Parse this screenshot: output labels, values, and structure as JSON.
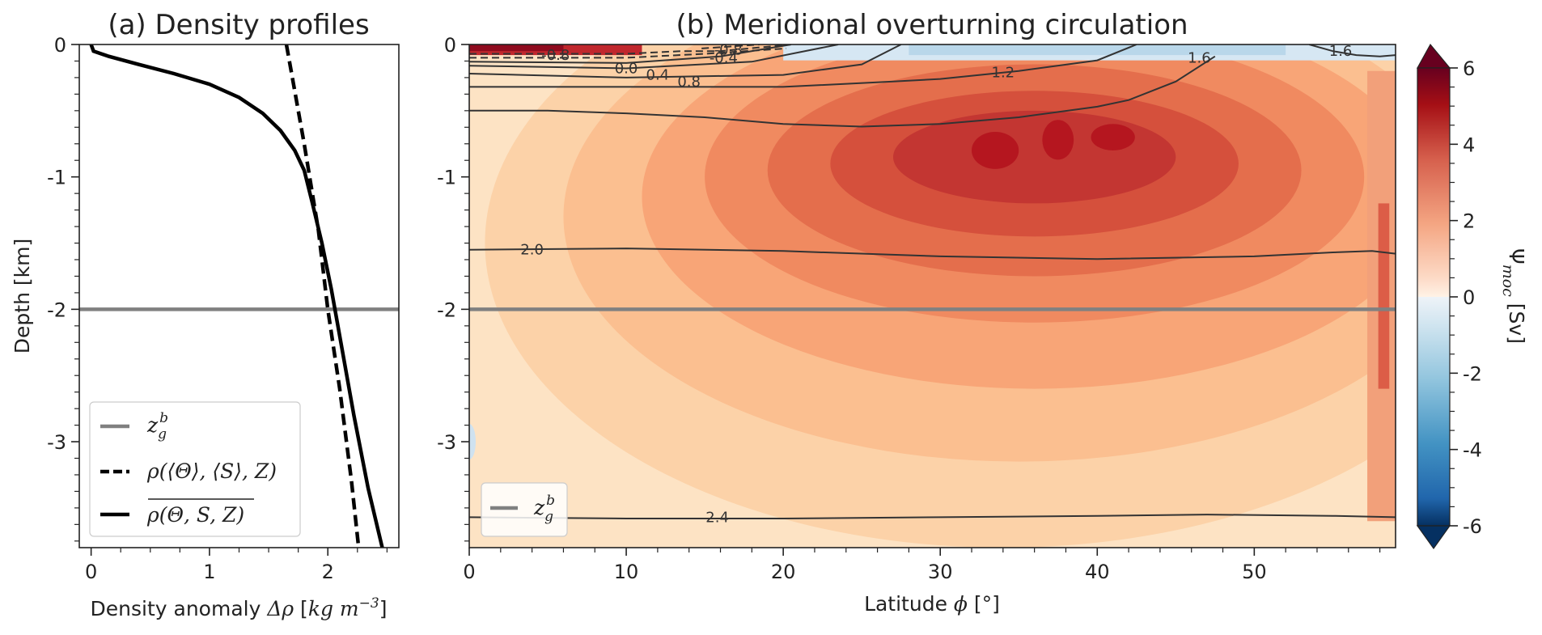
{
  "chart_data": [
    {
      "type": "line",
      "title": "(a) Density profiles",
      "xlabel": "Density anomaly Δρ [kg m⁻³]",
      "xlabel_parts": {
        "main": "Density anomaly ",
        "symbol": "Δρ",
        "unit_open": " [",
        "unit": "kg m",
        "exp": "−3",
        "unit_close": "]"
      },
      "ylabel": "Depth [km]",
      "xlim": [
        -0.1,
        2.6
      ],
      "ylim": [
        -3.8,
        0
      ],
      "xticks": [
        {
          "v": 0,
          "label": "0"
        },
        {
          "v": 1,
          "label": "1"
        },
        {
          "v": 2,
          "label": "2"
        }
      ],
      "yticks": [
        {
          "v": 0,
          "label": "0"
        },
        {
          "v": -1,
          "label": "-1"
        },
        {
          "v": -2,
          "label": "-2"
        },
        {
          "v": -3,
          "label": "-3"
        }
      ],
      "hline": {
        "y": -2.0,
        "color": "#808080"
      },
      "series": [
        {
          "name": "z_g^b",
          "style": "solid",
          "color": "#808080",
          "legend_text": "z",
          "legend_sub": "g",
          "legend_sup": "b"
        },
        {
          "name": "ρ(⟨Θ⟩,⟨S⟩,Z)",
          "style": "dashed",
          "color": "#000000",
          "legend_text": "ρ(⟨Θ⟩, ⟨S⟩, Z)",
          "x": [
            1.65,
            1.72,
            1.8,
            1.92,
            2.0,
            2.1,
            2.2,
            2.26
          ],
          "y": [
            0,
            -0.35,
            -0.75,
            -1.4,
            -2.0,
            -2.6,
            -3.3,
            -3.8
          ]
        },
        {
          "name": "ρ(Θ,S,Z) mean",
          "style": "solid",
          "color": "#000000",
          "legend_text": "ρ(Θ, S, Z)",
          "x": [
            0.0,
            0.02,
            0.15,
            0.4,
            0.7,
            1.0,
            1.25,
            1.45,
            1.6,
            1.72,
            1.8,
            1.87,
            1.95,
            2.03,
            2.12,
            2.22,
            2.34,
            2.46
          ],
          "y": [
            0,
            -0.05,
            -0.09,
            -0.15,
            -0.22,
            -0.3,
            -0.4,
            -0.52,
            -0.65,
            -0.8,
            -0.95,
            -1.2,
            -1.5,
            -1.85,
            -2.3,
            -2.8,
            -3.35,
            -3.8
          ]
        }
      ],
      "legend": "lower-left"
    },
    {
      "type": "heatmap",
      "title": "(b) Meridional overturning circulation",
      "xlabel": "Latitude ϕ [°]",
      "xlabel_parts": {
        "main": "Latitude ",
        "symbol": "ϕ",
        "unit": " [°]"
      },
      "xlim": [
        0,
        59
      ],
      "ylim": [
        -3.8,
        0
      ],
      "xticks": [
        {
          "v": 0,
          "label": "0"
        },
        {
          "v": 10,
          "label": "10"
        },
        {
          "v": 20,
          "label": "20"
        },
        {
          "v": 30,
          "label": "30"
        },
        {
          "v": 40,
          "label": "40"
        },
        {
          "v": 50,
          "label": "50"
        }
      ],
      "yticks": [
        {
          "v": 0,
          "label": "0"
        },
        {
          "v": -1,
          "label": "-1"
        },
        {
          "v": -2,
          "label": "-2"
        },
        {
          "v": -3,
          "label": "-3"
        }
      ],
      "hline": {
        "y": -2.0,
        "color": "#808080"
      },
      "legend_text": "z",
      "legend_sub": "g",
      "legend_sup": "b",
      "legend": "lower-left",
      "colorbar": {
        "label": "Ψ",
        "label_sub": "moc",
        "label_unit": " [Sv]",
        "range": [
          -6,
          6
        ],
        "ticks": [
          {
            "v": 6,
            "label": "6"
          },
          {
            "v": 4,
            "label": "4"
          },
          {
            "v": 2,
            "label": "2"
          },
          {
            "v": 0,
            "label": "0"
          },
          {
            "v": -2,
            "label": "-2"
          },
          {
            "v": -4,
            "label": "-4"
          },
          {
            "v": -6,
            "label": "-6"
          }
        ],
        "colormap": "RdBu_r"
      },
      "contour_lines": [
        {
          "level": "2.4",
          "x": [
            0,
            10,
            20,
            30,
            40,
            47,
            55,
            59
          ],
          "y": [
            -3.57,
            -3.58,
            -3.58,
            -3.57,
            -3.56,
            -3.55,
            -3.56,
            -3.57
          ],
          "label_at": [
            15.8,
            -3.57
          ]
        },
        {
          "level": "2.0",
          "x": [
            0,
            10,
            20,
            30,
            40,
            50,
            55,
            57.5,
            59
          ],
          "y": [
            -1.55,
            -1.54,
            -1.56,
            -1.6,
            -1.62,
            -1.6,
            -1.57,
            -1.56,
            -1.58
          ],
          "label_at": [
            4.0,
            -1.55
          ]
        },
        {
          "level": "1.6",
          "x": [
            0,
            5,
            10,
            15,
            20,
            25,
            30,
            35,
            40,
            42,
            45,
            47.5
          ],
          "y": [
            -0.5,
            -0.5,
            -0.52,
            -0.55,
            -0.6,
            -0.62,
            -0.6,
            -0.55,
            -0.47,
            -0.42,
            -0.28,
            -0.09
          ],
          "label_at": [
            46.5,
            -0.1
          ]
        },
        {
          "level": "1.2",
          "x": [
            0,
            10,
            20,
            27,
            30,
            35,
            40,
            42.5
          ],
          "y": [
            -0.32,
            -0.32,
            -0.32,
            -0.28,
            -0.26,
            -0.2,
            -0.12,
            0
          ],
          "label_at": [
            34.0,
            -0.21
          ]
        },
        {
          "level": "0.8",
          "x": [
            0,
            10,
            20,
            25,
            27.5
          ],
          "y": [
            -0.22,
            -0.25,
            -0.23,
            -0.15,
            0
          ],
          "label_at": [
            14.0,
            -0.28
          ]
        },
        {
          "level": "0.4",
          "x": [
            0,
            10,
            18,
            23.5
          ],
          "y": [
            -0.16,
            -0.18,
            -0.13,
            0
          ],
          "label_at": [
            12.0,
            -0.23
          ]
        },
        {
          "level": "0.0",
          "x": [
            0,
            10,
            16,
            20.5
          ],
          "y": [
            -0.13,
            -0.14,
            -0.09,
            0
          ],
          "label_at": [
            10.0,
            -0.18
          ]
        },
        {
          "level": "-0.4",
          "x": [
            0,
            10,
            15,
            20.2
          ],
          "y": [
            -0.1,
            -0.1,
            -0.07,
            -0.03
          ],
          "label_at": [
            16.2,
            -0.1
          ],
          "dashed": true
        },
        {
          "level": "-0.8",
          "x": [
            0,
            5,
            10,
            13.5,
            16,
            20.5
          ],
          "y": [
            -0.07,
            -0.07,
            -0.07,
            -0.05,
            -0.05,
            0
          ],
          "label_at": [
            5.5,
            -0.08
          ],
          "dashed": true
        },
        {
          "level": "-0.8",
          "x": [
            14.8,
            18.5
          ],
          "y": [
            -0.03,
            0
          ],
          "label_at": [
            16.5,
            -0.04
          ],
          "dashed": true
        },
        {
          "level": "1.6",
          "x": [
            53.5,
            55,
            56.5,
            58,
            59
          ],
          "y": [
            0,
            -0.05,
            -0.08,
            -0.09,
            -0.08
          ],
          "label_at": [
            55.5,
            -0.05
          ]
        }
      ],
      "fill_description": "overturning cell with maximum about 5.8 Sv near latitude 30-42, depth 0.7-0.9 km; weak negative values near surface north of 20"
    }
  ]
}
